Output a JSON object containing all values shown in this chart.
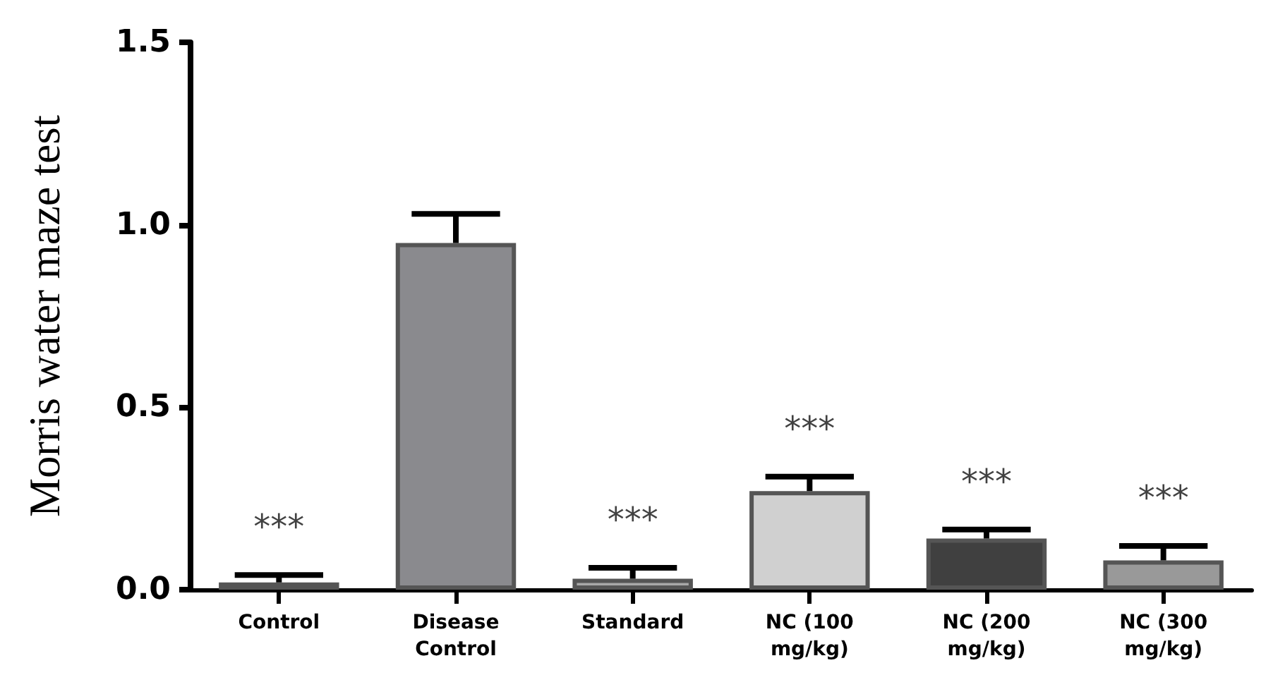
{
  "chart_data": {
    "type": "bar",
    "ylabel": "Morris water maze test",
    "categories": [
      "Control",
      "Disease\nControl",
      "Standard",
      "NC (100\nmg/kg)",
      "NC (200\nmg/kg)",
      "NC (300\nmg/kg)"
    ],
    "values": [
      0.02,
      0.95,
      0.03,
      0.27,
      0.14,
      0.08
    ],
    "errors": [
      [
        0.02,
        0.04
      ],
      [
        0.95,
        1.03
      ],
      [
        0.03,
        0.06
      ],
      [
        0.27,
        0.31
      ],
      [
        0.14,
        0.165
      ],
      [
        0.08,
        0.12
      ]
    ],
    "colors": [
      "#d9d9d9",
      "#8a8a8e",
      "#a8a8a8",
      "#d0d0d0",
      "#404040",
      "#999999"
    ],
    "ylim": [
      0,
      1.5
    ],
    "yticks": [
      {
        "value": 0,
        "label": "0.0"
      },
      {
        "value": 0.5,
        "label": "0.5"
      },
      {
        "value": 1,
        "label": "1.0"
      },
      {
        "value": 1.5,
        "label": "1.5"
      }
    ],
    "grid": false,
    "annotations": [
      {
        "text": "***",
        "x": "Control",
        "y": 0.04
      },
      {
        "text": "***",
        "x": "Standard",
        "y": 0.06
      },
      {
        "text": "***",
        "x": "NC (100\nmg/kg)",
        "y": 0.31
      },
      {
        "text": "***",
        "x": "NC (200\nmg/kg)",
        "y": 0.165
      },
      {
        "text": "***",
        "x": "NC (300\nmg/kg)",
        "y": 0.12
      }
    ]
  }
}
